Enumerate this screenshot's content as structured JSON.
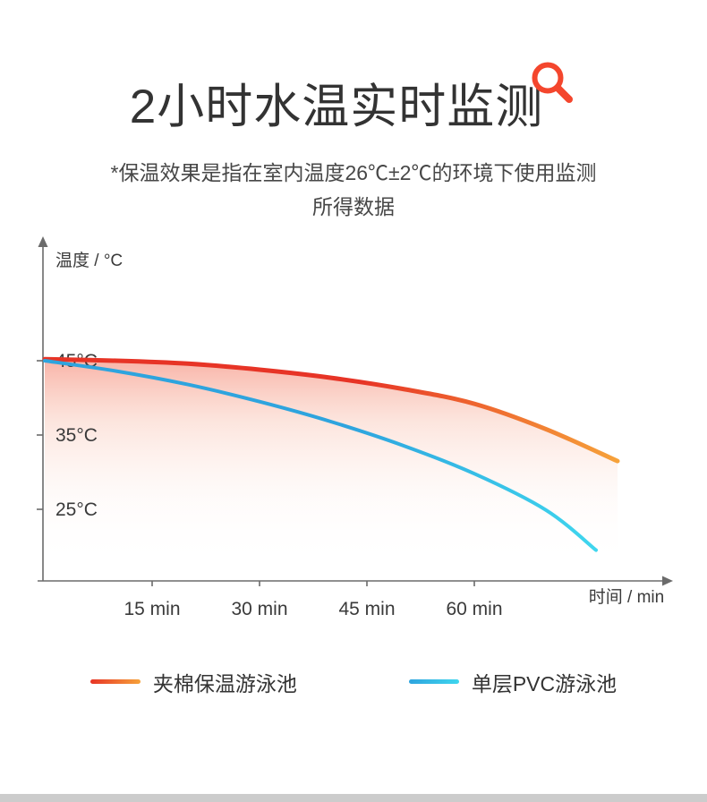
{
  "header": {
    "title": "2小时水温实时监测",
    "subtitle_line1": "*保温效果是指在室内温度26℃±2℃的环境下使用监测",
    "subtitle_line2": "所得数据",
    "magnifier_color": "#f4462d"
  },
  "chart_data": {
    "type": "line",
    "title": "",
    "ylabel": "温度 / °C",
    "xlabel": "时间 / min",
    "grid": false,
    "legend_position": "bottom",
    "xlim": [
      0,
      85
    ],
    "ylim": [
      15,
      60
    ],
    "y_ticks": [
      {
        "label": "45°C",
        "value": 45
      },
      {
        "label": "35°C",
        "value": 35
      },
      {
        "label": "25°C",
        "value": 25
      }
    ],
    "x_ticks": [
      {
        "label": "15 min",
        "value": 15
      },
      {
        "label": "30 min",
        "value": 30
      },
      {
        "label": "45 min",
        "value": 45
      },
      {
        "label": "60 min",
        "value": 60
      }
    ],
    "series": [
      {
        "name": "夹棉保温游泳池",
        "x": [
          0,
          10,
          20,
          30,
          40,
          50,
          60,
          70,
          80
        ],
        "values": [
          45.2,
          45.0,
          44.6,
          43.8,
          42.7,
          41.2,
          39.2,
          35.8,
          31.5
        ],
        "color_start": "#e73426",
        "color_end": "#f6a23a",
        "area_fill": true,
        "stroke_width": 5
      },
      {
        "name": "单层PVC游泳池",
        "x": [
          0,
          10,
          20,
          30,
          40,
          50,
          60,
          70,
          77
        ],
        "values": [
          45.0,
          43.6,
          41.8,
          39.5,
          36.8,
          33.6,
          29.8,
          24.9,
          19.5
        ],
        "color_start": "#2ea4de",
        "color_end": "#3fd6ee",
        "area_fill": false,
        "stroke_width": 4
      }
    ],
    "axis_color": "#6b6b6b",
    "tick_label_color": "#3a3a3a",
    "area_fill_color": "#f2674f"
  },
  "legend": {
    "items": [
      {
        "label": "夹棉保温游泳池",
        "color_start": "#e73426",
        "color_end": "#f6a23a"
      },
      {
        "label": "单层PVC游泳池",
        "color_start": "#2ea4de",
        "color_end": "#3fd6ee"
      }
    ]
  }
}
